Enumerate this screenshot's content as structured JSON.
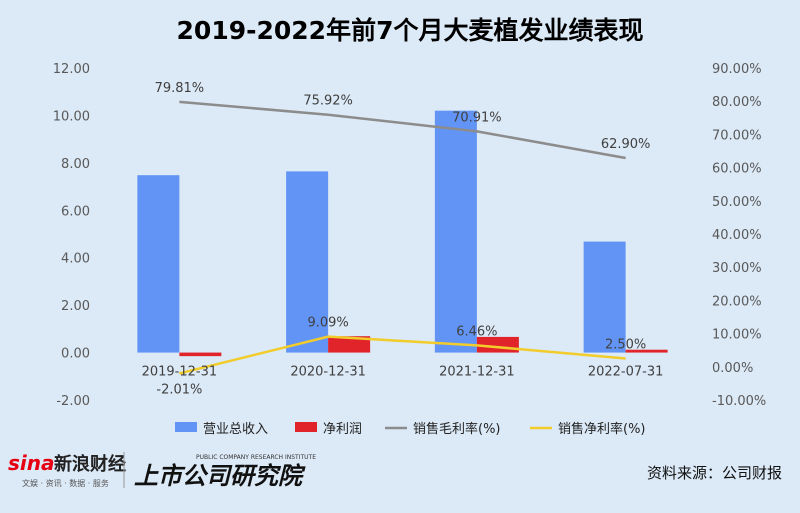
{
  "chart_data": {
    "type": "bar",
    "title": "2019-2022年前7个月大麦植发业绩表现",
    "categories": [
      "2019-12-31",
      "2020-12-31",
      "2021-12-31",
      "2022-07-31"
    ],
    "series": [
      {
        "name": "营业总收入",
        "kind": "bar",
        "axis": "left",
        "color": "#6194f5",
        "values": [
          7.48,
          7.64,
          10.2,
          4.68
        ]
      },
      {
        "name": "净利润",
        "kind": "bar",
        "axis": "left",
        "color": "#e0242a",
        "values": [
          -0.15,
          0.69,
          0.66,
          0.12
        ]
      },
      {
        "name": "销售毛利率(%)",
        "kind": "line",
        "axis": "right",
        "color": "#8c8c8c",
        "values": [
          79.81,
          75.92,
          70.91,
          62.9
        ],
        "labels": [
          "79.81%",
          "75.92%",
          "70.91%",
          "62.90%"
        ]
      },
      {
        "name": "销售净利率(%)",
        "kind": "line",
        "axis": "right",
        "color": "#f2cc2a",
        "values": [
          -2.01,
          9.09,
          6.46,
          2.5
        ],
        "labels": [
          "-2.01%",
          "9.09%",
          "6.46%",
          "2.50%"
        ]
      }
    ],
    "y_left": {
      "range": [
        -2,
        12
      ],
      "ticks": [
        "-2.00",
        "0.00",
        "2.00",
        "4.00",
        "6.00",
        "8.00",
        "10.00",
        "12.00"
      ]
    },
    "y_right": {
      "range": [
        -10,
        90
      ],
      "ticks": [
        "-10.00%",
        "0.00%",
        "10.00%",
        "20.00%",
        "30.00%",
        "40.00%",
        "50.00%",
        "60.00%",
        "70.00%",
        "80.00%",
        "90.00%"
      ]
    },
    "grid": false,
    "legend_position": "bottom"
  },
  "branding": {
    "sina_logo": "sina",
    "sina_name": "新浪财经",
    "sina_sub": "文娱 · 资讯 · 数据 · 服务",
    "institute_name": "上市公司研究院",
    "institute_en": "PUBLIC COMPANY RESEARCH INSTITUTE"
  },
  "source_text": "资料来源：公司财报"
}
